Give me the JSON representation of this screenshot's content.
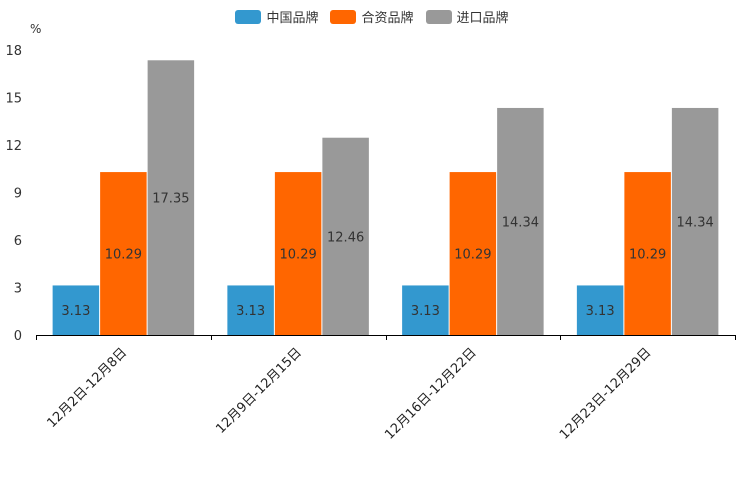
{
  "chart_data": {
    "type": "bar",
    "ylabel": "%",
    "ylim": [
      0,
      18
    ],
    "yticks": [
      0,
      3,
      6,
      9,
      12,
      15,
      18
    ],
    "categories": [
      "12月2日-12月8日",
      "12月9日-12月15日",
      "12月16日-12月22日",
      "12月23日-12月29日"
    ],
    "series": [
      {
        "name": "中国品牌",
        "color": "#3398CF",
        "values": [
          3.13,
          3.13,
          3.13,
          3.13
        ]
      },
      {
        "name": "合资品牌",
        "color": "#FF6600",
        "values": [
          10.29,
          10.29,
          10.29,
          10.29
        ]
      },
      {
        "name": "进口品牌",
        "color": "#999999",
        "values": [
          17.35,
          12.46,
          14.34,
          14.34
        ]
      }
    ],
    "legend_position": "top-center",
    "grid": false
  }
}
